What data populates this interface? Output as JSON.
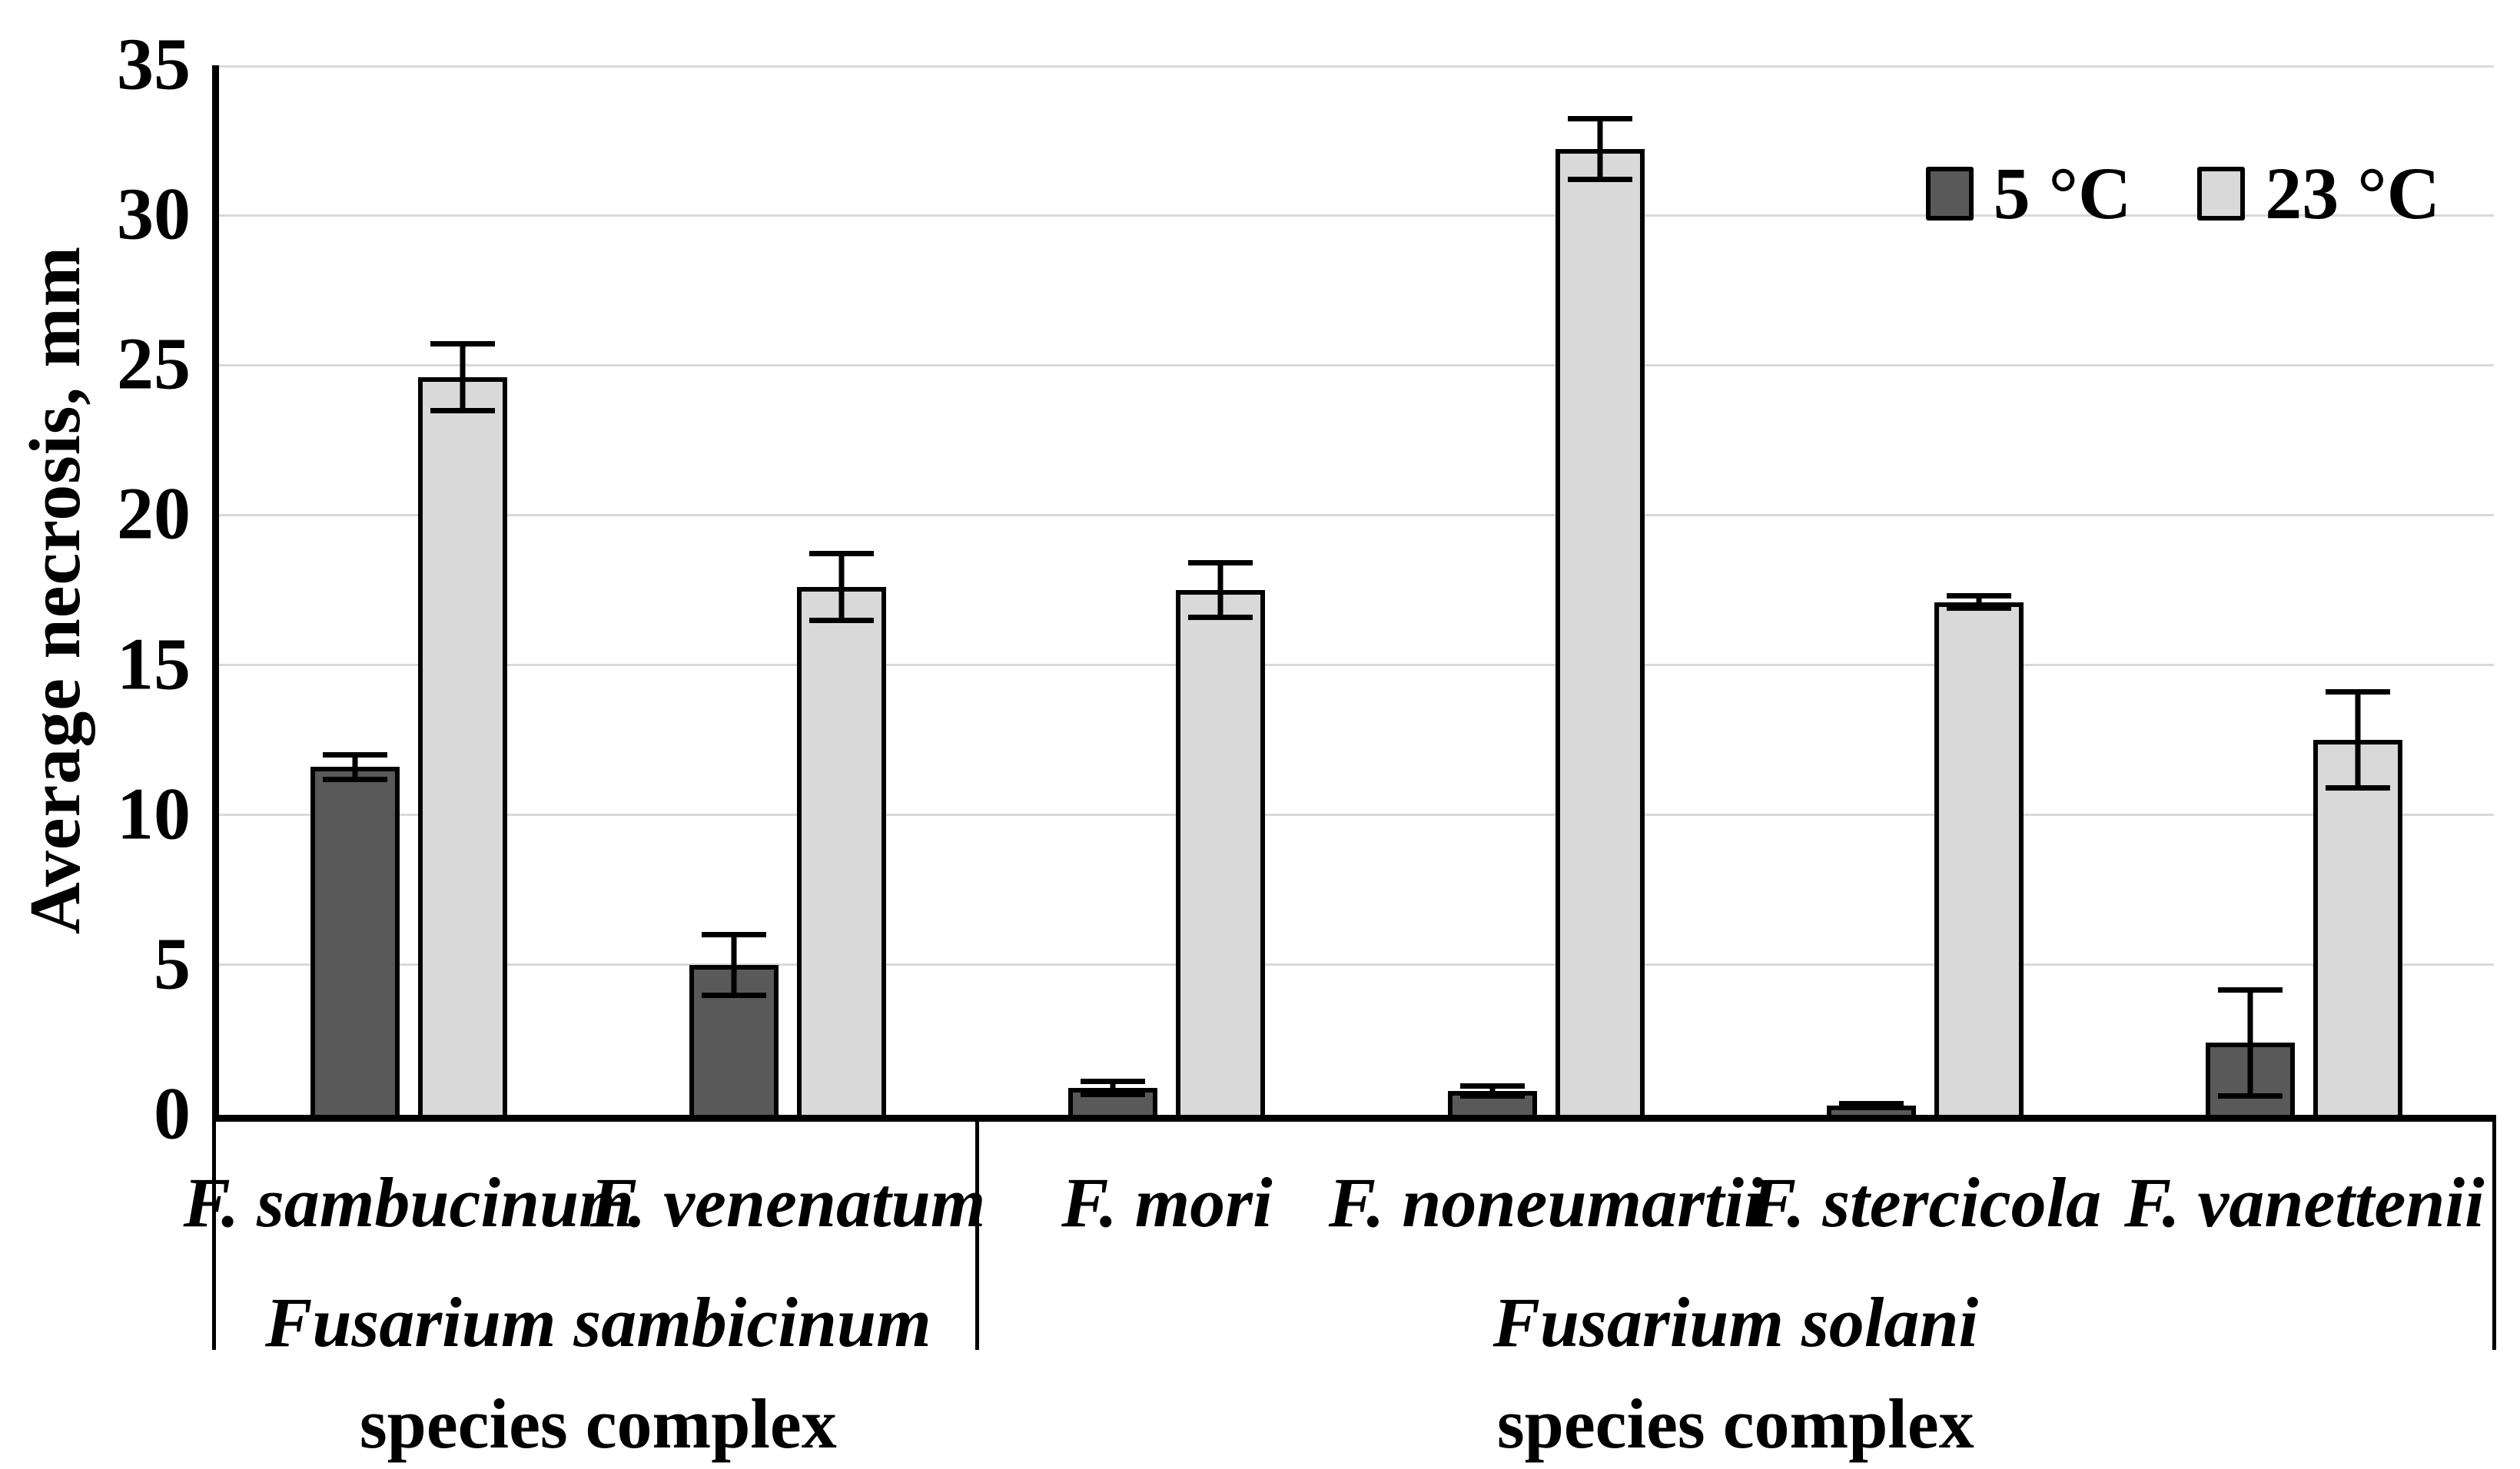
{
  "colors": {
    "series_dark": "#595959",
    "series_light": "#d9d9d9",
    "gridline": "#d9d9d9",
    "axis": "#000000",
    "background": "#ffffff"
  },
  "legend": {
    "items": [
      {
        "label": "5 °C",
        "swatch_color": "#595959"
      },
      {
        "label": "23 °C",
        "swatch_color": "#d9d9d9"
      }
    ],
    "position": "top-right"
  },
  "chart_data": {
    "type": "bar",
    "title": "",
    "xlabel": "",
    "ylabel": "Average necrosis, mm",
    "ylim": [
      0,
      35
    ],
    "yticks": [
      0,
      5,
      10,
      15,
      20,
      25,
      30,
      35
    ],
    "grid": true,
    "legend_position": "top-right",
    "categories": [
      "F. sambucinum",
      "F. venenatum",
      "F. mori",
      "F. noneumartii",
      "F. stercicola",
      "F. vanettenii"
    ],
    "groups": [
      {
        "name": "Fusarium sambicinum",
        "sub": "species complex",
        "span": [
          0,
          2
        ]
      },
      {
        "name": "Fusarium solani",
        "sub": "species complex",
        "span": [
          2,
          6
        ]
      }
    ],
    "series": [
      {
        "name": "5 °C",
        "color": "#595959",
        "values": [
          11.6,
          5.0,
          0.9,
          0.8,
          0.3,
          2.4
        ],
        "errors": [
          0.5,
          1.1,
          0.3,
          0.25,
          0.15,
          1.85
        ]
      },
      {
        "name": "23 °C",
        "color": "#d9d9d9",
        "values": [
          24.6,
          17.6,
          17.5,
          32.2,
          17.1,
          12.5
        ],
        "errors": [
          1.2,
          1.2,
          1.0,
          1.1,
          0.3,
          1.7
        ]
      }
    ]
  }
}
